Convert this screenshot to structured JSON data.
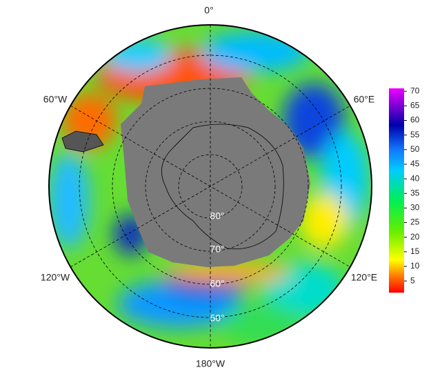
{
  "map": {
    "longitude_labels": [
      "0°",
      "60°E",
      "120°E",
      "180°W",
      "120°W",
      "60°W"
    ],
    "latitude_labels": [
      "80°",
      "70°",
      "60°",
      "50°"
    ],
    "colorbar": {
      "range": [
        1,
        71
      ],
      "ticks": [
        5,
        10,
        15,
        20,
        25,
        30,
        35,
        40,
        45,
        50,
        55,
        60,
        65,
        70
      ]
    }
  }
}
